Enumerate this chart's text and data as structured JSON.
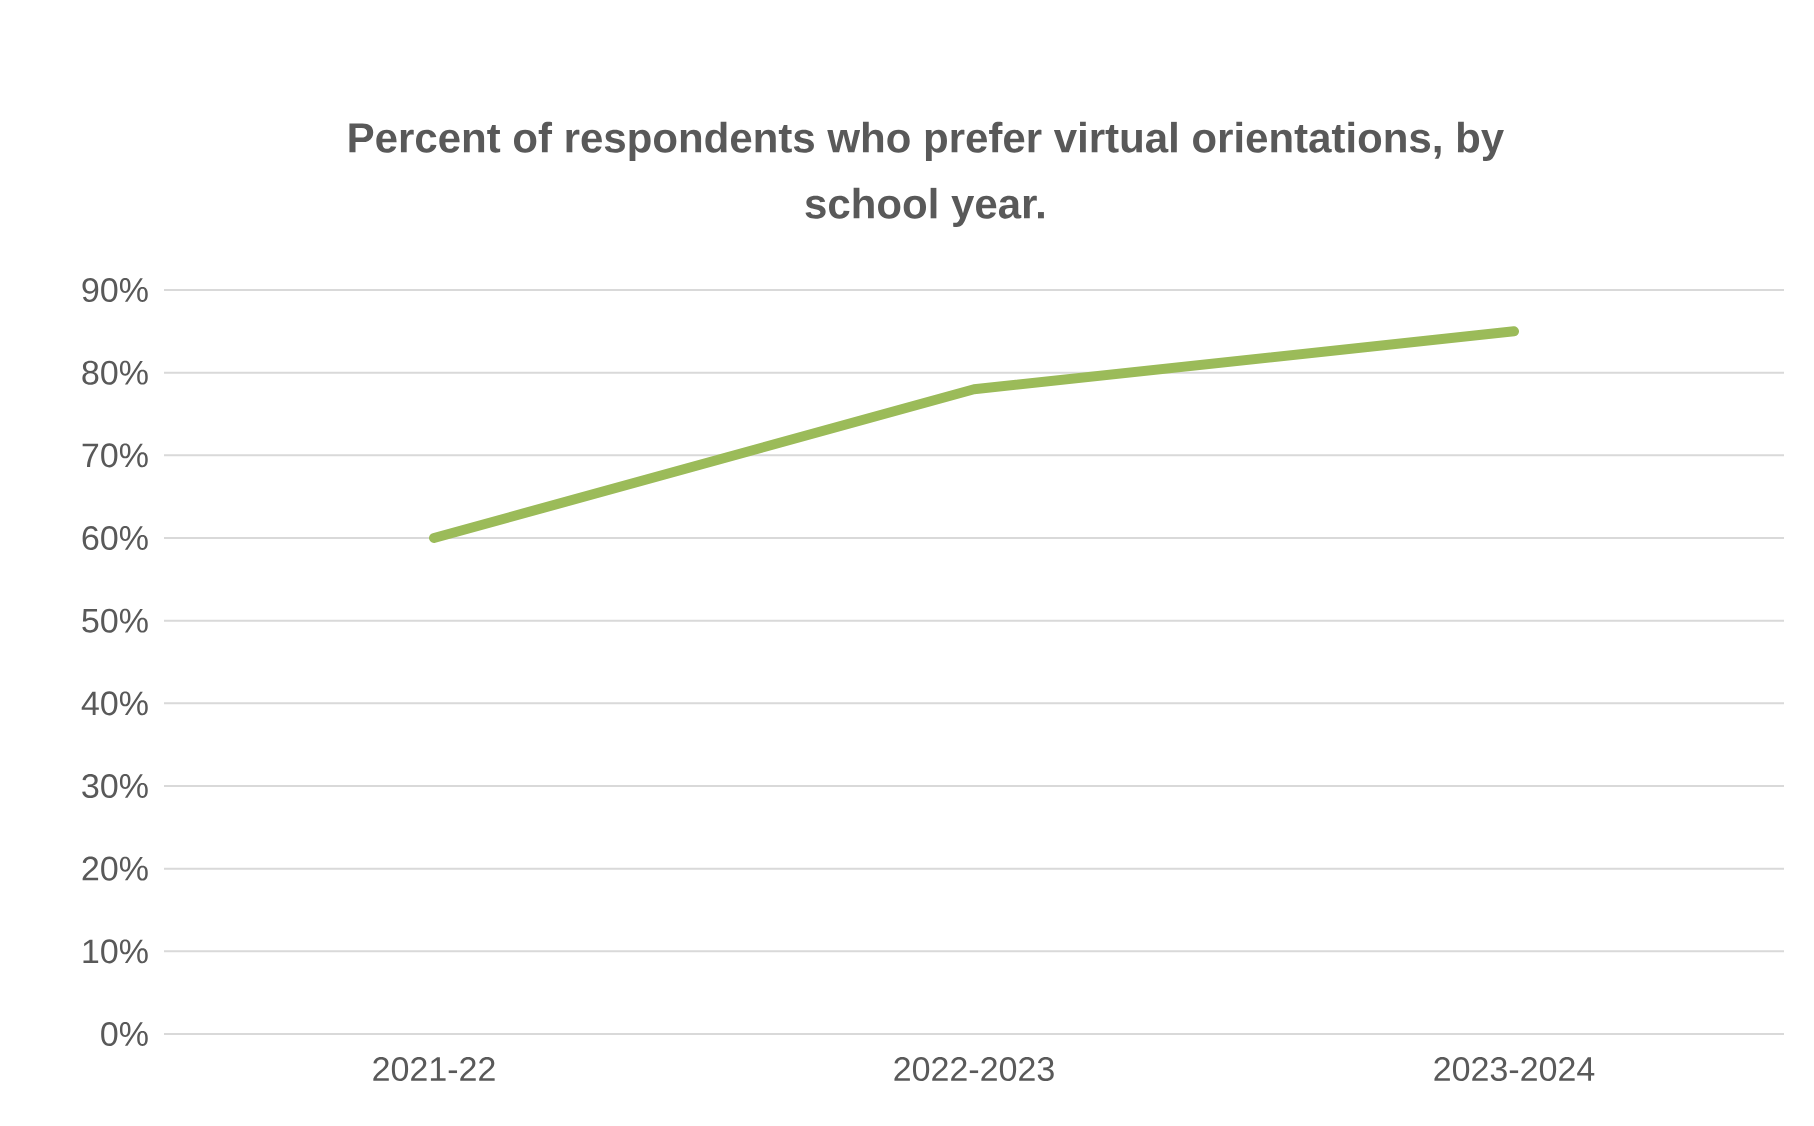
{
  "chart_data": {
    "type": "line",
    "title": "Percent of respondents who prefer virtual orientations, by school year.",
    "categories": [
      "2021-22",
      "2022-2023",
      "2023-2024"
    ],
    "series": [
      {
        "color": "#9bbb59",
        "values": [
          60,
          78,
          85
        ]
      }
    ],
    "ylim": [
      0,
      90
    ],
    "yticks": [
      {
        "value": 0,
        "label": "0%"
      },
      {
        "value": 10,
        "label": "10%"
      },
      {
        "value": 20,
        "label": "20%"
      },
      {
        "value": 30,
        "label": "30%"
      },
      {
        "value": 40,
        "label": "40%"
      },
      {
        "value": 50,
        "label": "50%"
      },
      {
        "value": 60,
        "label": "60%"
      },
      {
        "value": 70,
        "label": "70%"
      },
      {
        "value": 80,
        "label": "80%"
      },
      {
        "value": 90,
        "label": "90%"
      }
    ],
    "grid": "y",
    "marker": "none",
    "line_style": "solid"
  }
}
